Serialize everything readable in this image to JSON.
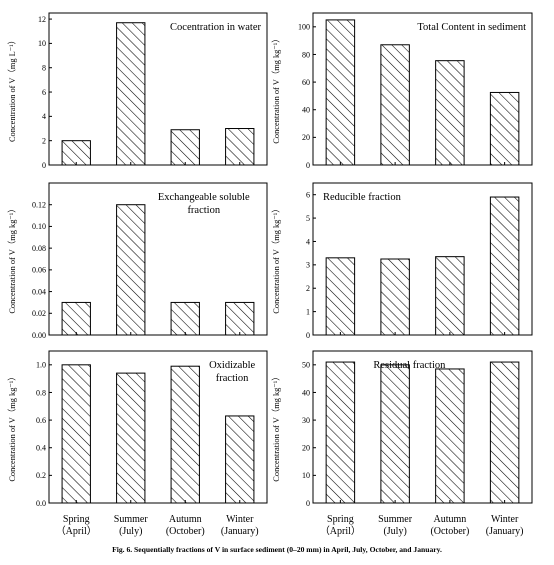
{
  "caption": "Fig. 6. Sequentially fractions of V in surface sediment (0–20 mm) in April, July, October, and January.",
  "x_tick_labels": [
    {
      "line1": "Spring",
      "line2": "（April）"
    },
    {
      "line1": "Summer",
      "line2": "(July)"
    },
    {
      "line1": "Autumn",
      "line2": "(October)"
    },
    {
      "line1": "Winter",
      "line2": "(January)"
    }
  ],
  "chart_data": [
    {
      "type": "bar",
      "title": "Cocentration in water",
      "ylabel": "Concentration of  V（mg L⁻¹）",
      "categories": [
        "Spring (April)",
        "Summer (July)",
        "Autumn (October)",
        "Winter (January)"
      ],
      "values": [
        2.0,
        11.7,
        2.9,
        3.0
      ],
      "ylim": [
        0,
        12.5
      ],
      "yticks": [
        0,
        2,
        4,
        6,
        8,
        10,
        12
      ],
      "ytick_labels": [
        "0",
        "2",
        "4",
        "6",
        "8",
        "10",
        "12"
      ],
      "title_lines": [
        "Cocentration in water"
      ],
      "title_align": "right"
    },
    {
      "type": "bar",
      "title": "Total Content in sediment",
      "ylabel": "Concentration of  V（mg kg⁻¹）",
      "categories": [
        "Spring (April)",
        "Summer (July)",
        "Autumn (October)",
        "Winter (January)"
      ],
      "values": [
        105,
        87,
        75.5,
        52.5
      ],
      "ylim": [
        0,
        110
      ],
      "yticks": [
        0,
        20,
        40,
        60,
        80,
        100
      ],
      "ytick_labels": [
        "0",
        "20",
        "40",
        "60",
        "80",
        "100"
      ],
      "title_lines": [
        "Total Content in sediment"
      ],
      "title_align": "right"
    },
    {
      "type": "bar",
      "title": "Exchangeable soluble fraction",
      "ylabel": "Concentration of  V（mg kg⁻¹）",
      "categories": [
        "Spring (April)",
        "Summer (July)",
        "Autumn (October)",
        "Winter (January)"
      ],
      "values": [
        0.03,
        0.12,
        0.03,
        0.03
      ],
      "ylim": [
        0,
        0.14
      ],
      "yticks": [
        0,
        0.02,
        0.04,
        0.06,
        0.08,
        0.1,
        0.12
      ],
      "ytick_labels": [
        "0.00",
        "0.02",
        "0.04",
        "0.06",
        "0.08",
        "0.10",
        "0.12"
      ],
      "title_lines": [
        "Exchangeable soluble",
        "fraction"
      ],
      "title_align": "center"
    },
    {
      "type": "bar",
      "title": "Reducible fraction",
      "ylabel": "Concentration of  V（mg kg⁻¹）",
      "categories": [
        "Spring (April)",
        "Summer (July)",
        "Autumn (October)",
        "Winter (January)"
      ],
      "values": [
        3.3,
        3.25,
        3.35,
        5.9
      ],
      "ylim": [
        0,
        6.5
      ],
      "yticks": [
        0,
        1,
        2,
        3,
        4,
        5,
        6
      ],
      "ytick_labels": [
        "0",
        "1",
        "2",
        "3",
        "4",
        "5",
        "6"
      ],
      "title_lines": [
        "Reducible fraction"
      ],
      "title_align": "left"
    },
    {
      "type": "bar",
      "title": "Oxidizable fraction",
      "ylabel": "Concentration of  V（mg kg⁻¹）",
      "categories": [
        "Spring (April)",
        "Summer (July)",
        "Autumn (October)",
        "Winter (January)"
      ],
      "values": [
        1.0,
        0.94,
        0.99,
        0.63
      ],
      "ylim": [
        0,
        1.1
      ],
      "yticks": [
        0,
        0.2,
        0.4,
        0.6,
        0.8,
        1.0
      ],
      "ytick_labels": [
        "0.0",
        "0.2",
        "0.4",
        "0.6",
        "0.8",
        "1.0"
      ],
      "title_lines": [
        "Oxidizable",
        "fraction"
      ],
      "title_align": "center"
    },
    {
      "type": "bar",
      "title": "Residual fraction",
      "ylabel": "Concentration of  V（mg kg⁻¹）",
      "categories": [
        "Spring (April)",
        "Summer (July)",
        "Autumn (October)",
        "Winter (January)"
      ],
      "values": [
        51,
        50,
        48.5,
        51
      ],
      "ylim": [
        0,
        55
      ],
      "yticks": [
        0,
        10,
        20,
        30,
        40,
        50
      ],
      "ytick_labels": [
        "0",
        "10",
        "20",
        "30",
        "40",
        "50"
      ],
      "title_lines": [
        "Residual fraction"
      ],
      "title_align": "center"
    }
  ]
}
